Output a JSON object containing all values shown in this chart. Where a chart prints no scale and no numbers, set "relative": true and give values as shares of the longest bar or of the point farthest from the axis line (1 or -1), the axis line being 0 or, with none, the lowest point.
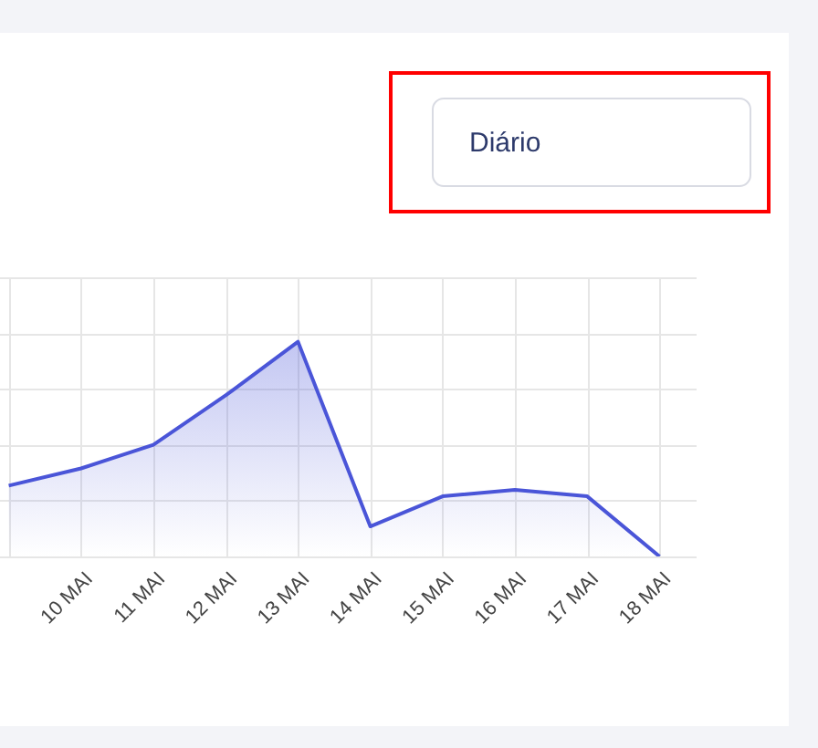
{
  "chart_data": {
    "type": "area",
    "relative": true,
    "categories": [
      null,
      "10 MAI",
      "11 MAI",
      "12 MAI",
      "13 MAI",
      "14 MAI",
      "15 MAI",
      "16 MAI",
      "17 MAI",
      "18 MAI"
    ],
    "series": [
      {
        "color": "#4a55d8",
        "values": [
          0.33,
          0.41,
          0.52,
          0.75,
          1,
          0.14,
          0.28,
          0.31,
          0.28,
          0
        ]
      }
    ],
    "grid": true,
    "tick_labels": "x",
    "marker": "none",
    "annotations": [
      "Diário"
    ]
  }
}
